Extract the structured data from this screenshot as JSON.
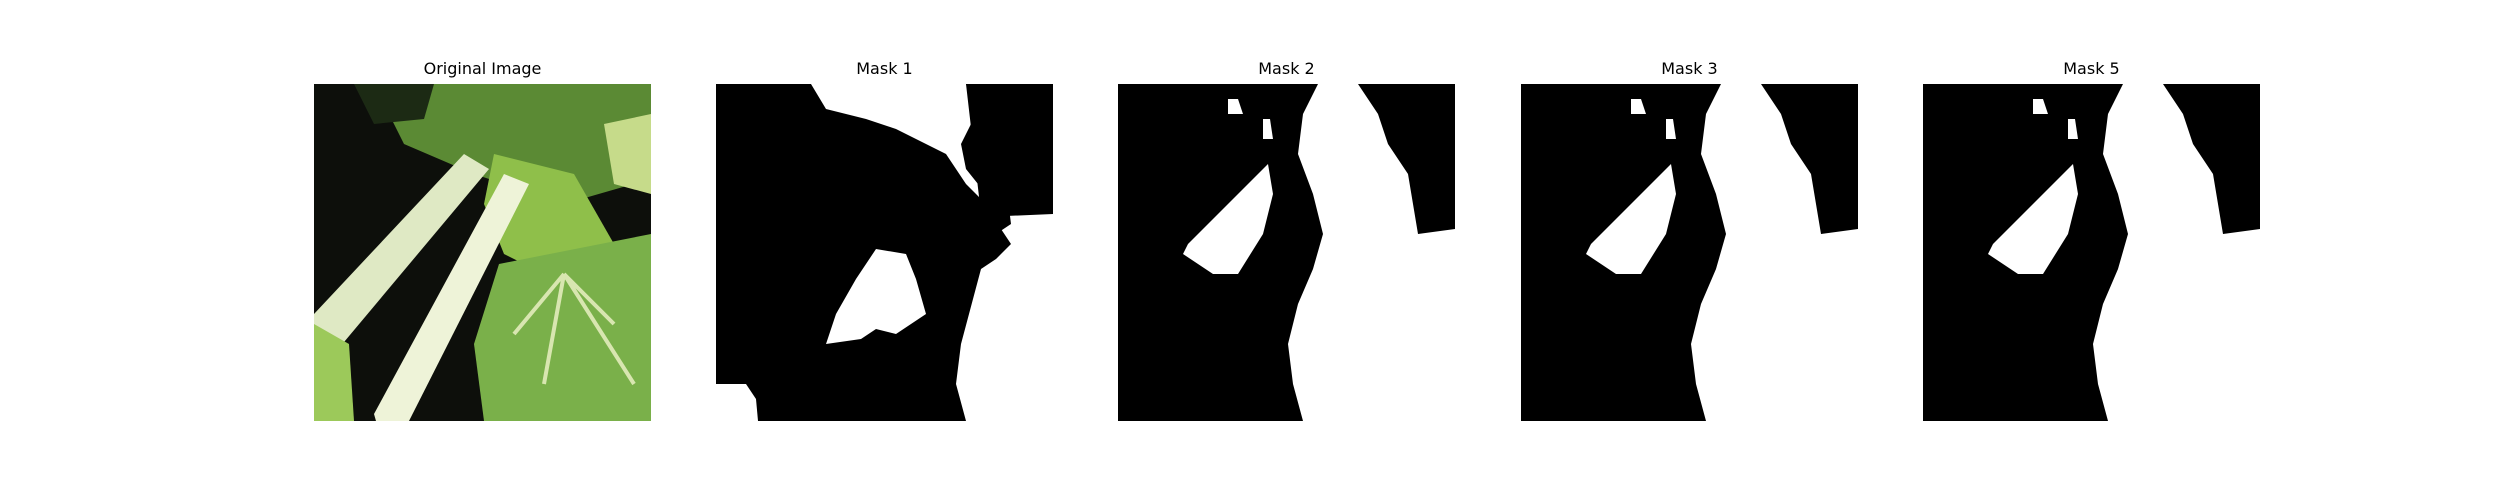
{
  "figure": {
    "panels": [
      {
        "title": "Original Image",
        "kind": "photo"
      },
      {
        "title": "Mask 1",
        "kind": "mask"
      },
      {
        "title": "Mask 2",
        "kind": "mask"
      },
      {
        "title": "Mask 3",
        "kind": "mask"
      },
      {
        "title": "Mask 5",
        "kind": "mask"
      }
    ]
  },
  "colors": {
    "background": "#ffffff",
    "mask_foreground": "#ffffff",
    "mask_background": "#000000",
    "leaf_green": "#7ab04a",
    "dark_green": "#2f4a1c",
    "stem_pale": "#dfe9c4",
    "shadow": "#0d0f0b"
  }
}
